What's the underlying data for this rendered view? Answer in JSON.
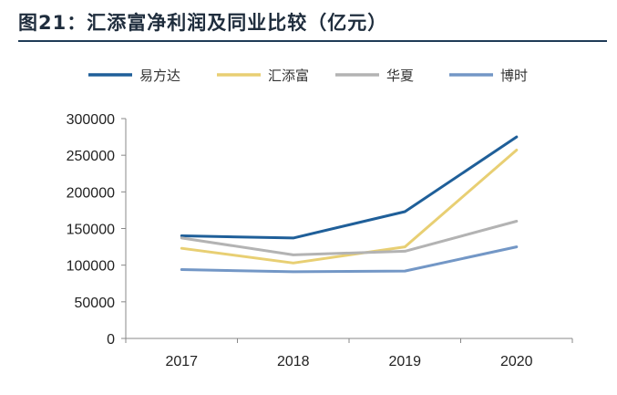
{
  "header": {
    "title": "图21：汇添富净利润及同业比较（亿元）"
  },
  "chart_data": {
    "type": "line",
    "title": "图21：汇添富净利润及同业比较（亿元）",
    "x": [
      "2017",
      "2018",
      "2019",
      "2020"
    ],
    "series": [
      {
        "name": "易方达",
        "values": [
          140000,
          137000,
          173000,
          275000
        ],
        "color": "#1f5f99"
      },
      {
        "name": "汇添富",
        "values": [
          123000,
          103000,
          125000,
          257000
        ],
        "color": "#e8cf73"
      },
      {
        "name": "华夏",
        "values": [
          137000,
          114000,
          119000,
          160000
        ],
        "color": "#b3b3b3"
      },
      {
        "name": "博时",
        "values": [
          94000,
          91000,
          92000,
          125000
        ],
        "color": "#7397c6"
      }
    ],
    "ylim": [
      0,
      300000
    ],
    "yticks": [
      "0",
      "50000",
      "100000",
      "150000",
      "200000",
      "250000",
      "300000"
    ],
    "legend": "top",
    "grid": false
  }
}
